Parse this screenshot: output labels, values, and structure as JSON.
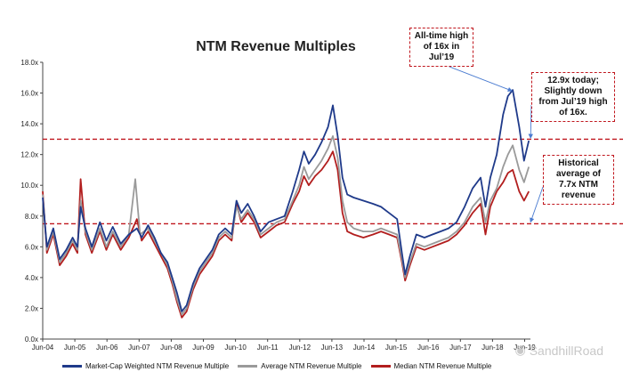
{
  "chart_data": {
    "type": "line",
    "title": "NTM Revenue Multiples",
    "xlabel": "",
    "ylabel": "",
    "ylim": [
      0,
      18
    ],
    "y_tick_labels": [
      "0.0x",
      "2.0x",
      "4.0x",
      "6.0x",
      "8.0x",
      "10.0x",
      "12.0x",
      "14.0x",
      "16.0x",
      "18.0x"
    ],
    "x_tick_labels": [
      "Jun-04",
      "Jun-05",
      "Jun-06",
      "Jun-07",
      "Jun-08",
      "Jun-09",
      "Jun-10",
      "Jun-11",
      "Jun-12",
      "Jun-13",
      "Jun-14",
      "Jun-15",
      "Jun-16",
      "Jun-17",
      "Jun-18",
      "Jun-19"
    ],
    "xlim": [
      2004.42,
      2019.6
    ],
    "series": [
      {
        "name": "Market-Cap Weighted NTM Revenue Multiple",
        "color": "#1f3a8a",
        "points": [
          [
            2004.42,
            9.2
          ],
          [
            2004.55,
            6.0
          ],
          [
            2004.75,
            7.2
          ],
          [
            2004.95,
            5.2
          ],
          [
            2005.15,
            5.8
          ],
          [
            2005.35,
            6.6
          ],
          [
            2005.5,
            6.0
          ],
          [
            2005.6,
            8.6
          ],
          [
            2005.75,
            7.2
          ],
          [
            2005.95,
            6.0
          ],
          [
            2006.2,
            7.6
          ],
          [
            2006.4,
            6.4
          ],
          [
            2006.6,
            7.3
          ],
          [
            2006.85,
            6.2
          ],
          [
            2007.1,
            6.8
          ],
          [
            2007.35,
            7.2
          ],
          [
            2007.5,
            6.6
          ],
          [
            2007.7,
            7.4
          ],
          [
            2007.9,
            6.6
          ],
          [
            2008.1,
            5.6
          ],
          [
            2008.3,
            5.0
          ],
          [
            2008.45,
            4.0
          ],
          [
            2008.6,
            3.0
          ],
          [
            2008.75,
            1.8
          ],
          [
            2008.9,
            2.2
          ],
          [
            2009.1,
            3.6
          ],
          [
            2009.3,
            4.6
          ],
          [
            2009.5,
            5.2
          ],
          [
            2009.7,
            5.8
          ],
          [
            2009.9,
            6.8
          ],
          [
            2010.1,
            7.2
          ],
          [
            2010.3,
            6.8
          ],
          [
            2010.45,
            9.0
          ],
          [
            2010.6,
            8.2
          ],
          [
            2010.8,
            8.8
          ],
          [
            2011.0,
            8.0
          ],
          [
            2011.2,
            7.0
          ],
          [
            2011.45,
            7.6
          ],
          [
            2011.7,
            7.8
          ],
          [
            2011.95,
            8.0
          ],
          [
            2012.2,
            9.6
          ],
          [
            2012.4,
            11.0
          ],
          [
            2012.55,
            12.2
          ],
          [
            2012.7,
            11.4
          ],
          [
            2012.9,
            12.0
          ],
          [
            2013.1,
            12.8
          ],
          [
            2013.3,
            13.8
          ],
          [
            2013.45,
            15.2
          ],
          [
            2013.6,
            13.2
          ],
          [
            2013.75,
            10.5
          ],
          [
            2013.9,
            9.4
          ],
          [
            2014.1,
            9.2
          ],
          [
            2014.4,
            9.0
          ],
          [
            2014.7,
            8.8
          ],
          [
            2014.95,
            8.6
          ],
          [
            2015.2,
            8.2
          ],
          [
            2015.45,
            7.8
          ],
          [
            2015.6,
            5.6
          ],
          [
            2015.7,
            4.2
          ],
          [
            2015.85,
            5.4
          ],
          [
            2016.05,
            6.8
          ],
          [
            2016.3,
            6.6
          ],
          [
            2016.55,
            6.8
          ],
          [
            2016.8,
            7.0
          ],
          [
            2017.05,
            7.2
          ],
          [
            2017.3,
            7.6
          ],
          [
            2017.55,
            8.6
          ],
          [
            2017.8,
            9.8
          ],
          [
            2018.05,
            10.5
          ],
          [
            2018.2,
            8.6
          ],
          [
            2018.35,
            10.5
          ],
          [
            2018.55,
            12.0
          ],
          [
            2018.75,
            14.6
          ],
          [
            2018.9,
            15.8
          ],
          [
            2019.05,
            16.2
          ],
          [
            2019.25,
            13.8
          ],
          [
            2019.4,
            11.6
          ],
          [
            2019.55,
            12.9
          ]
        ]
      },
      {
        "name": "Average NTM Revenue Multiple",
        "color": "#9a9a9a",
        "points": [
          [
            2004.42,
            9.4
          ],
          [
            2004.55,
            5.8
          ],
          [
            2004.75,
            7.0
          ],
          [
            2004.95,
            5.0
          ],
          [
            2005.15,
            5.6
          ],
          [
            2005.35,
            6.4
          ],
          [
            2005.5,
            5.8
          ],
          [
            2005.6,
            9.0
          ],
          [
            2005.75,
            7.0
          ],
          [
            2005.95,
            5.8
          ],
          [
            2006.2,
            7.2
          ],
          [
            2006.4,
            6.0
          ],
          [
            2006.6,
            7.0
          ],
          [
            2006.85,
            6.0
          ],
          [
            2007.1,
            6.8
          ],
          [
            2007.3,
            10.4
          ],
          [
            2007.45,
            6.8
          ],
          [
            2007.7,
            7.2
          ],
          [
            2007.9,
            6.4
          ],
          [
            2008.1,
            5.6
          ],
          [
            2008.3,
            4.8
          ],
          [
            2008.45,
            3.8
          ],
          [
            2008.6,
            2.6
          ],
          [
            2008.75,
            1.6
          ],
          [
            2008.9,
            2.0
          ],
          [
            2009.1,
            3.4
          ],
          [
            2009.3,
            4.4
          ],
          [
            2009.5,
            5.0
          ],
          [
            2009.7,
            5.6
          ],
          [
            2009.9,
            6.6
          ],
          [
            2010.1,
            7.0
          ],
          [
            2010.3,
            6.6
          ],
          [
            2010.45,
            8.6
          ],
          [
            2010.6,
            7.8
          ],
          [
            2010.8,
            8.4
          ],
          [
            2011.0,
            7.8
          ],
          [
            2011.2,
            6.8
          ],
          [
            2011.45,
            7.2
          ],
          [
            2011.7,
            7.6
          ],
          [
            2011.95,
            7.8
          ],
          [
            2012.2,
            9.0
          ],
          [
            2012.4,
            10.0
          ],
          [
            2012.55,
            11.2
          ],
          [
            2012.7,
            10.4
          ],
          [
            2012.9,
            11.0
          ],
          [
            2013.1,
            11.6
          ],
          [
            2013.3,
            12.4
          ],
          [
            2013.45,
            13.2
          ],
          [
            2013.6,
            11.8
          ],
          [
            2013.75,
            9.0
          ],
          [
            2013.9,
            7.6
          ],
          [
            2014.1,
            7.2
          ],
          [
            2014.4,
            7.0
          ],
          [
            2014.7,
            7.0
          ],
          [
            2014.95,
            7.2
          ],
          [
            2015.2,
            7.0
          ],
          [
            2015.45,
            6.8
          ],
          [
            2015.6,
            5.2
          ],
          [
            2015.7,
            4.0
          ],
          [
            2015.85,
            5.0
          ],
          [
            2016.05,
            6.2
          ],
          [
            2016.3,
            6.0
          ],
          [
            2016.55,
            6.2
          ],
          [
            2016.8,
            6.4
          ],
          [
            2017.05,
            6.6
          ],
          [
            2017.3,
            7.0
          ],
          [
            2017.55,
            7.6
          ],
          [
            2017.8,
            8.6
          ],
          [
            2018.05,
            9.2
          ],
          [
            2018.2,
            7.6
          ],
          [
            2018.35,
            9.0
          ],
          [
            2018.55,
            9.8
          ],
          [
            2018.75,
            11.2
          ],
          [
            2018.9,
            12.0
          ],
          [
            2019.05,
            12.6
          ],
          [
            2019.25,
            11.0
          ],
          [
            2019.4,
            10.2
          ],
          [
            2019.55,
            11.2
          ]
        ]
      },
      {
        "name": "Median NTM Revenue Multiple",
        "color": "#b21e1e",
        "points": [
          [
            2004.42,
            9.6
          ],
          [
            2004.55,
            5.6
          ],
          [
            2004.75,
            6.8
          ],
          [
            2004.95,
            4.8
          ],
          [
            2005.15,
            5.4
          ],
          [
            2005.35,
            6.2
          ],
          [
            2005.5,
            5.6
          ],
          [
            2005.6,
            10.4
          ],
          [
            2005.75,
            6.8
          ],
          [
            2005.95,
            5.6
          ],
          [
            2006.2,
            7.0
          ],
          [
            2006.4,
            5.8
          ],
          [
            2006.6,
            6.8
          ],
          [
            2006.85,
            5.8
          ],
          [
            2007.1,
            6.6
          ],
          [
            2007.35,
            7.8
          ],
          [
            2007.5,
            6.4
          ],
          [
            2007.7,
            7.0
          ],
          [
            2007.9,
            6.2
          ],
          [
            2008.1,
            5.4
          ],
          [
            2008.3,
            4.6
          ],
          [
            2008.45,
            3.6
          ],
          [
            2008.6,
            2.4
          ],
          [
            2008.75,
            1.4
          ],
          [
            2008.9,
            1.8
          ],
          [
            2009.1,
            3.2
          ],
          [
            2009.3,
            4.2
          ],
          [
            2009.5,
            4.8
          ],
          [
            2009.7,
            5.4
          ],
          [
            2009.9,
            6.4
          ],
          [
            2010.1,
            6.8
          ],
          [
            2010.3,
            6.4
          ],
          [
            2010.45,
            8.8
          ],
          [
            2010.6,
            7.6
          ],
          [
            2010.8,
            8.2
          ],
          [
            2011.0,
            7.6
          ],
          [
            2011.2,
            6.6
          ],
          [
            2011.45,
            7.0
          ],
          [
            2011.7,
            7.4
          ],
          [
            2011.95,
            7.6
          ],
          [
            2012.2,
            8.8
          ],
          [
            2012.4,
            9.6
          ],
          [
            2012.55,
            10.6
          ],
          [
            2012.7,
            10.0
          ],
          [
            2012.9,
            10.6
          ],
          [
            2013.1,
            11.0
          ],
          [
            2013.3,
            11.6
          ],
          [
            2013.45,
            12.2
          ],
          [
            2013.6,
            11.0
          ],
          [
            2013.75,
            8.2
          ],
          [
            2013.9,
            7.0
          ],
          [
            2014.1,
            6.8
          ],
          [
            2014.4,
            6.6
          ],
          [
            2014.7,
            6.8
          ],
          [
            2014.95,
            7.0
          ],
          [
            2015.2,
            6.8
          ],
          [
            2015.45,
            6.6
          ],
          [
            2015.6,
            5.0
          ],
          [
            2015.7,
            3.8
          ],
          [
            2015.85,
            4.8
          ],
          [
            2016.05,
            6.0
          ],
          [
            2016.3,
            5.8
          ],
          [
            2016.55,
            6.0
          ],
          [
            2016.8,
            6.2
          ],
          [
            2017.05,
            6.4
          ],
          [
            2017.3,
            6.8
          ],
          [
            2017.55,
            7.4
          ],
          [
            2017.8,
            8.2
          ],
          [
            2018.05,
            8.8
          ],
          [
            2018.2,
            6.8
          ],
          [
            2018.35,
            8.6
          ],
          [
            2018.55,
            9.6
          ],
          [
            2018.75,
            10.2
          ],
          [
            2018.9,
            10.8
          ],
          [
            2019.05,
            11.0
          ],
          [
            2019.25,
            9.6
          ],
          [
            2019.4,
            9.0
          ],
          [
            2019.55,
            9.6
          ]
        ]
      }
    ],
    "reference_lines": [
      {
        "y": 13.0,
        "color": "#c0171e",
        "style": "dashed"
      },
      {
        "y": 7.5,
        "color": "#c0171e",
        "style": "dashed"
      }
    ],
    "legend_position": "bottom",
    "grid": false
  },
  "annotations": {
    "peak": "All-time high of 16x in Jul’19",
    "today": "12.9x today; Slightly down from Jul’19 high of 16x.",
    "average": "Historical average of 7.7x NTM revenue"
  },
  "watermark": "SandhillRoad"
}
